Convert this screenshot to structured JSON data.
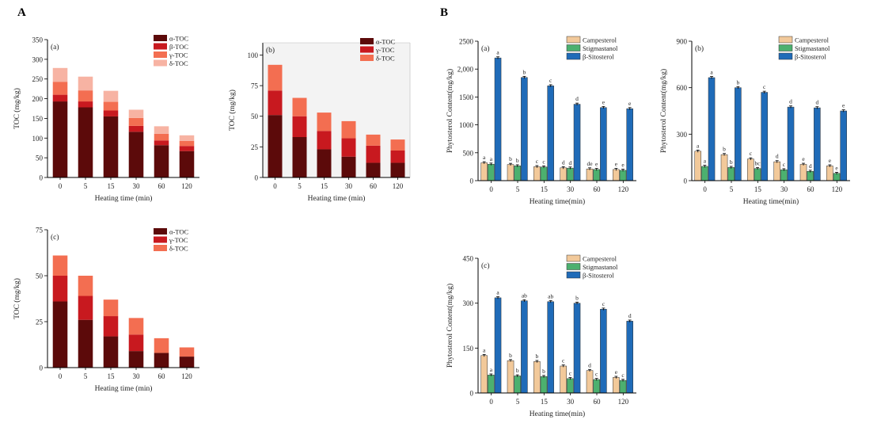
{
  "panel_labels": {
    "A": "A",
    "B": "B"
  },
  "chart_data": [
    {
      "id": "toc_a",
      "type": "bar",
      "stacked": true,
      "panel_label": "(a)",
      "ylabel": "TOC (mg/kg)",
      "xlabel": "Heating time (min)",
      "categories": [
        "0",
        "5",
        "15",
        "30",
        "60",
        "120"
      ],
      "ylim": [
        0,
        350
      ],
      "yticks": [
        0,
        50,
        100,
        150,
        200,
        250,
        300,
        350
      ],
      "legend_position": "top-right",
      "series": [
        {
          "name": "α-TOC",
          "color": "#5c0a0a",
          "values": [
            193,
            178,
            155,
            116,
            82,
            67
          ]
        },
        {
          "name": "β-TOC",
          "color": "#c8191f",
          "values": [
            17,
            15,
            15,
            15,
            12,
            13
          ]
        },
        {
          "name": "γ-TOC",
          "color": "#f36e51",
          "values": [
            33,
            28,
            22,
            20,
            17,
            13
          ]
        },
        {
          "name": "δ-TOC",
          "color": "#f7b3a3",
          "values": [
            35,
            35,
            28,
            21,
            19,
            14
          ]
        }
      ]
    },
    {
      "id": "toc_b",
      "type": "bar",
      "stacked": true,
      "panel_label": "(b)",
      "ylabel": "TOC (mg/kg)",
      "xlabel": "Heating time (min)",
      "categories": [
        "0",
        "5",
        "15",
        "30",
        "60",
        "120"
      ],
      "ylim": [
        0,
        110
      ],
      "yticks": [
        0,
        25,
        50,
        75,
        100
      ],
      "legend_position": "top-right",
      "background": "#f3f3f3",
      "series": [
        {
          "name": "α-TOC",
          "color": "#5c0a0a",
          "values": [
            51,
            33,
            23,
            17,
            12,
            12
          ]
        },
        {
          "name": "γ-TOC",
          "color": "#c8191f",
          "values": [
            20,
            17,
            15,
            15,
            14,
            10
          ]
        },
        {
          "name": "δ-TOC",
          "color": "#f36e51",
          "values": [
            21,
            15,
            15,
            14,
            9,
            9
          ]
        }
      ]
    },
    {
      "id": "toc_c",
      "type": "bar",
      "stacked": true,
      "panel_label": "(c)",
      "ylabel": "TOC (mg/kg)",
      "xlabel": "Heating time (min)",
      "categories": [
        "0",
        "5",
        "15",
        "30",
        "60",
        "120"
      ],
      "ylim": [
        0,
        75
      ],
      "yticks": [
        0,
        25,
        50,
        75
      ],
      "legend_position": "top-right",
      "series": [
        {
          "name": "α-TOC",
          "color": "#5c0a0a",
          "values": [
            36,
            26,
            17,
            9,
            8,
            6
          ]
        },
        {
          "name": "γ-TOC",
          "color": "#c8191f",
          "values": [
            14,
            13,
            11,
            9,
            0,
            0
          ]
        },
        {
          "name": "δ-TOC",
          "color": "#f36e51",
          "values": [
            11,
            11,
            9,
            9,
            8,
            5
          ]
        }
      ]
    },
    {
      "id": "phy_a",
      "type": "bar",
      "stacked": false,
      "panel_label": "(a)",
      "ylabel": "Phytosterol Content(mg/kg)",
      "xlabel": "Heating time(min)",
      "categories": [
        "0",
        "5",
        "15",
        "30",
        "60",
        "120"
      ],
      "ylim": [
        0,
        2500
      ],
      "yticks": [
        0,
        500,
        1000,
        1500,
        2000,
        2500
      ],
      "ytick_labels": [
        "0",
        "500",
        "1000",
        "1500",
        "2,000",
        "2500"
      ],
      "legend_position": "top-right",
      "series": [
        {
          "name": "Campesterol",
          "color": "#f2c99a",
          "values": [
            320,
            290,
            250,
            230,
            210,
            200
          ],
          "letters": [
            "a",
            "b",
            "c",
            "d",
            "de",
            "e"
          ]
        },
        {
          "name": "Stigmastanol",
          "color": "#4cb06f",
          "values": [
            295,
            265,
            245,
            225,
            200,
            185
          ],
          "letters": [
            "a",
            "b",
            "c",
            "d",
            "e",
            "e"
          ]
        },
        {
          "name": "β-Sitosterol",
          "color": "#1f6bb8",
          "values": [
            2200,
            1850,
            1700,
            1370,
            1310,
            1290
          ],
          "letters": [
            "a",
            "b",
            "c",
            "d",
            "e",
            "e"
          ]
        }
      ]
    },
    {
      "id": "phy_b",
      "type": "bar",
      "stacked": false,
      "panel_label": "(b)",
      "ylabel": "Phytosterol Content(mg/kg)",
      "xlabel": "Heating time(min)",
      "categories": [
        "0",
        "5",
        "15",
        "30",
        "60",
        "120"
      ],
      "ylim": [
        0,
        900
      ],
      "yticks": [
        0,
        300,
        600,
        900
      ],
      "legend_position": "top-right",
      "series": [
        {
          "name": "Campesterol",
          "color": "#f2c99a",
          "values": [
            190,
            168,
            140,
            122,
            105,
            95
          ],
          "letters": [
            "a",
            "b",
            "c",
            "d",
            "e",
            "e"
          ]
        },
        {
          "name": "Stigmastanol",
          "color": "#4cb06f",
          "values": [
            92,
            85,
            78,
            70,
            60,
            47
          ],
          "letters": [
            "a",
            "b",
            "bc",
            "c",
            "d",
            "e"
          ]
        },
        {
          "name": "β-Sitosterol",
          "color": "#1f6bb8",
          "values": [
            665,
            600,
            570,
            475,
            470,
            450
          ],
          "letters": [
            "a",
            "b",
            "c",
            "d",
            "d",
            "e"
          ]
        }
      ]
    },
    {
      "id": "phy_c",
      "type": "bar",
      "stacked": false,
      "panel_label": "(c)",
      "ylabel": "Phytosterol Content(mg/kg)",
      "xlabel": "Heating time(min)",
      "categories": [
        "0",
        "5",
        "15",
        "30",
        "60",
        "120"
      ],
      "ylim": [
        0,
        450
      ],
      "yticks": [
        0,
        150,
        300,
        450
      ],
      "legend_position": "top-right",
      "series": [
        {
          "name": "Campesterol",
          "color": "#f2c99a",
          "values": [
            125,
            108,
            105,
            90,
            75,
            52
          ],
          "letters": [
            "a",
            "b",
            "b",
            "c",
            "d",
            "e"
          ]
        },
        {
          "name": "Stigmastanol",
          "color": "#4cb06f",
          "values": [
            60,
            57,
            55,
            48,
            45,
            42
          ],
          "letters": [
            "a",
            "b",
            "b",
            "c",
            "c",
            "c"
          ]
        },
        {
          "name": "β-Sitosterol",
          "color": "#1f6bb8",
          "values": [
            318,
            308,
            305,
            300,
            280,
            240
          ],
          "letters": [
            "a",
            "ab",
            "ab",
            "b",
            "c",
            "d"
          ]
        }
      ]
    }
  ]
}
